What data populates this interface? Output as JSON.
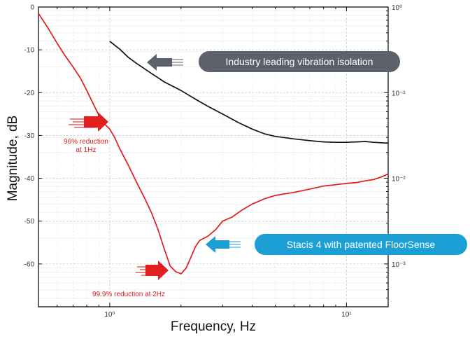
{
  "chart_data": {
    "type": "line",
    "title": "",
    "xlabel": "Frequency, Hz",
    "ylabel": "Magnitude, dB",
    "x_scale": "log",
    "xlim": [
      0.5,
      15
    ],
    "ylim": [
      -70,
      0
    ],
    "y2_scale": "log",
    "y2lim": [
      0.000316,
      1
    ],
    "grid": true,
    "x_ticks": [
      {
        "value": 1,
        "label": "10⁰"
      },
      {
        "value": 10,
        "label": "10¹"
      }
    ],
    "y_ticks": [
      {
        "value": 0,
        "label": "0"
      },
      {
        "value": -10,
        "label": "-10"
      },
      {
        "value": -20,
        "label": "-20"
      },
      {
        "value": -30,
        "label": "-30"
      },
      {
        "value": -40,
        "label": "-40"
      },
      {
        "value": -50,
        "label": "-50"
      },
      {
        "value": -60,
        "label": "-60"
      }
    ],
    "y2_ticks": [
      {
        "value": 1,
        "label": "10⁰"
      },
      {
        "value": 0.1,
        "label": "10⁻¹"
      },
      {
        "value": 0.01,
        "label": "10⁻²"
      },
      {
        "value": 0.001,
        "label": "10⁻³"
      }
    ],
    "series": [
      {
        "color": "#111111",
        "x": [
          1.0,
          1.1,
          1.2,
          1.3,
          1.5,
          1.7,
          2.0,
          2.3,
          2.6,
          3.0,
          3.5,
          4.0,
          4.5,
          5.0,
          6.0,
          7.0,
          8.0,
          9.0,
          10.0,
          11.0,
          12.0,
          13.0,
          15.0
        ],
        "y": [
          -8,
          -9.8,
          -11.8,
          -13.2,
          -15.5,
          -17.5,
          -19.5,
          -21.5,
          -23.2,
          -25.0,
          -27.0,
          -28.5,
          -29.6,
          -30.2,
          -30.8,
          -31.2,
          -31.5,
          -31.6,
          -31.6,
          -31.5,
          -31.4,
          -31.6,
          -31.8
        ]
      },
      {
        "color": "#e01b1b",
        "x": [
          0.5,
          0.55,
          0.6,
          0.65,
          0.7,
          0.75,
          0.8,
          0.85,
          0.9,
          0.95,
          1.0,
          1.05,
          1.1,
          1.2,
          1.3,
          1.4,
          1.5,
          1.6,
          1.7,
          1.8,
          1.9,
          2.0,
          2.1,
          2.2,
          2.3,
          2.4,
          2.6,
          2.8,
          3.0,
          3.3,
          3.6,
          4.0,
          4.5,
          5.0,
          6.0,
          7.0,
          8.0,
          9.0,
          10.0,
          11.0,
          12.0,
          13.0,
          14.0,
          15.0
        ],
        "y": [
          -1.5,
          -5,
          -8.5,
          -11.5,
          -14,
          -16.5,
          -19.5,
          -22.5,
          -25.3,
          -27.3,
          -28.5,
          -30.5,
          -33,
          -37,
          -41,
          -44.5,
          -48,
          -52,
          -56.5,
          -60.5,
          -61.8,
          -62.3,
          -61.0,
          -58.5,
          -56.0,
          -54.5,
          -53.5,
          -52.0,
          -50.0,
          -49.0,
          -47.5,
          -46.0,
          -44.8,
          -44.0,
          -43.3,
          -42.5,
          -41.8,
          -41.5,
          -41.2,
          -41.0,
          -40.6,
          -40.3,
          -39.7,
          -39.0
        ]
      }
    ],
    "annotations": [
      {
        "text": "96% reduction",
        "line2": "at 1Hz",
        "color": "#d81e1e"
      },
      {
        "text": "99.9% reduction at 2Hz",
        "color": "#d81e1e"
      },
      {
        "text": "Industry leading vibration isolation",
        "bg": "#5d616b",
        "fg": "#ffffff"
      },
      {
        "text": "Stacis 4 with patented FloorSense",
        "bg": "#1b9fd4",
        "fg": "#ffffff"
      }
    ]
  }
}
